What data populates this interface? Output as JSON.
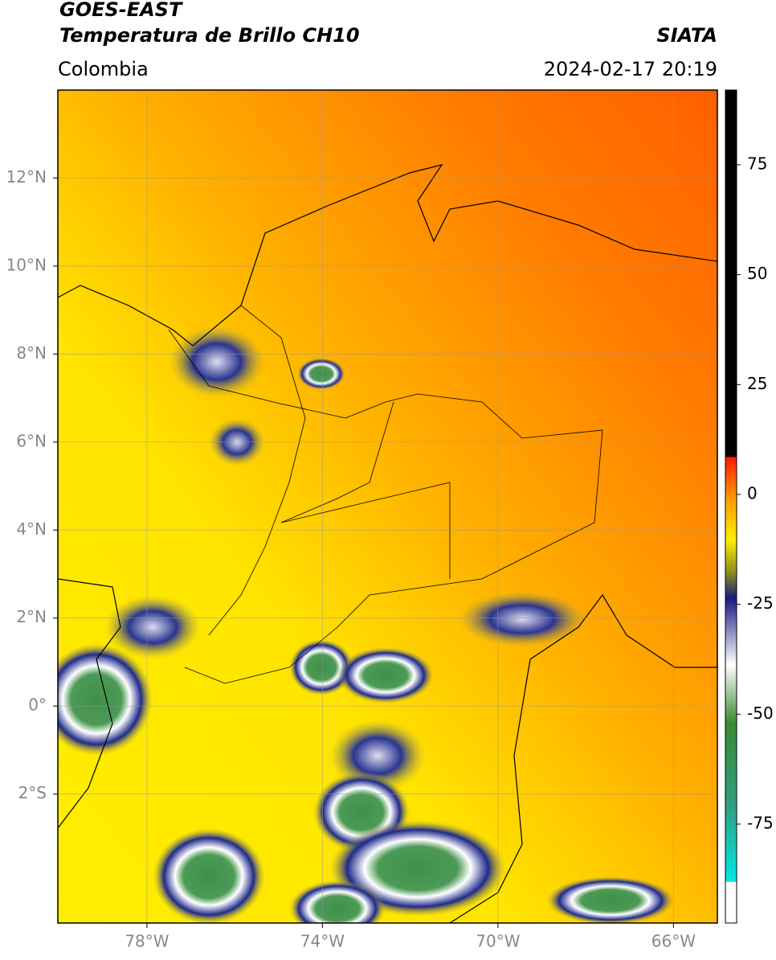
{
  "header": {
    "source": "GOES-EAST",
    "product": "Temperatura de Brillo CH10",
    "region": "Colombia",
    "organization": "SIATA",
    "datetime": "2024-02-17 20:19"
  },
  "map": {
    "xlim": [
      -80.03,
      -65.0
    ],
    "ylim": [
      -4.93,
      14.0
    ],
    "xticks": [
      {
        "value": -78,
        "label": "78°W"
      },
      {
        "value": -74,
        "label": "74°W"
      },
      {
        "value": -70,
        "label": "70°W"
      },
      {
        "value": -66,
        "label": "66°W"
      }
    ],
    "yticks": [
      {
        "value": 12,
        "label": "12°N"
      },
      {
        "value": 10,
        "label": "10°N"
      },
      {
        "value": 8,
        "label": "8°N"
      },
      {
        "value": 6,
        "label": "6°N"
      },
      {
        "value": 4,
        "label": "4°N"
      },
      {
        "value": 2,
        "label": "2°N"
      },
      {
        "value": 0,
        "label": "0°"
      },
      {
        "value": -2,
        "label": "2°S"
      }
    ],
    "grid": true
  },
  "colorbar": {
    "lim": [
      -97.5,
      92
    ],
    "ticks": [
      75,
      50,
      25,
      0,
      -25,
      -50,
      -75
    ]
  }
}
